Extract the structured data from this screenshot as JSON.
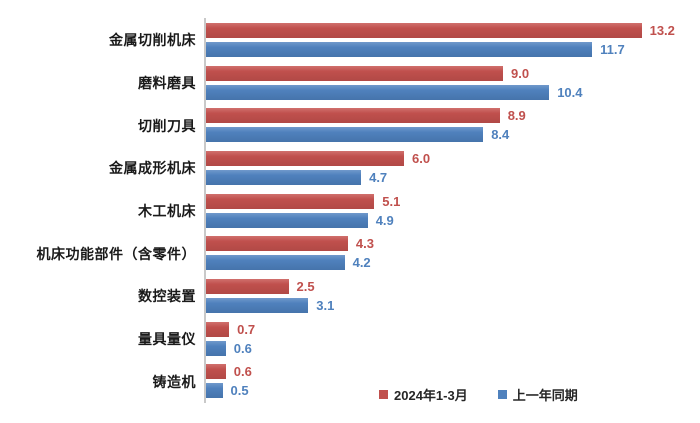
{
  "chart_data": {
    "type": "bar",
    "orientation": "horizontal",
    "title": "",
    "xlabel": "",
    "ylabel": "",
    "grid": false,
    "xlim": [
      0,
      14.9
    ],
    "legend_position": "bottom-right",
    "value_labels": true,
    "categories": [
      "金属切削机床",
      "磨料磨具",
      "切削刀具",
      "金属成形机床",
      "木工机床",
      "机床功能部件（含零件）",
      "数控装置",
      "量具量仪",
      "铸造机"
    ],
    "series": [
      {
        "name": "2024年1-3月",
        "color": "#C0504D",
        "values": [
          13.2,
          9.0,
          8.9,
          6.0,
          5.1,
          4.3,
          2.5,
          0.7,
          0.6
        ],
        "labels": [
          "13.2",
          "9.0",
          "8.9",
          "6.0",
          "5.1",
          "4.3",
          "2.5",
          "0.7",
          "0.6"
        ]
      },
      {
        "name": "上一年同期",
        "color": "#4F81BD",
        "values": [
          11.7,
          10.4,
          8.4,
          4.7,
          4.9,
          4.2,
          3.1,
          0.6,
          0.5
        ],
        "labels": [
          "11.7",
          "10.4",
          "8.4",
          "4.7",
          "4.9",
          "4.2",
          "3.1",
          "0.6",
          "0.5"
        ]
      }
    ]
  },
  "legend": {
    "items": [
      {
        "label": "2024年1-3月",
        "color": "#C0504D"
      },
      {
        "label": "上一年同期",
        "color": "#4F81BD"
      }
    ]
  }
}
